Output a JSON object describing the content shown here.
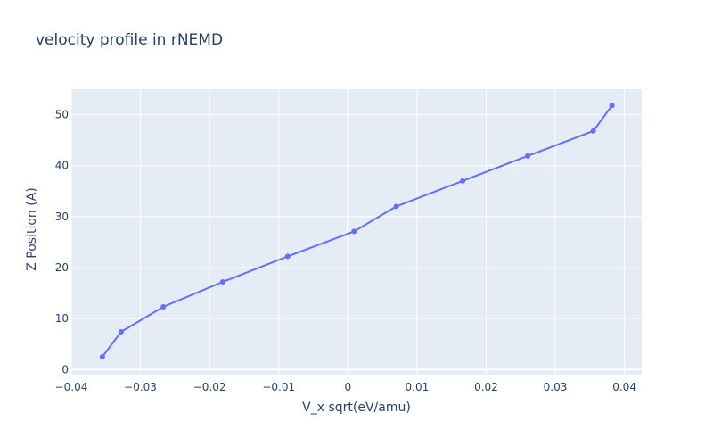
{
  "chart_data": {
    "type": "line",
    "title": "velocity profile in rNEMD",
    "xlabel": "V_x sqrt(eV/amu)",
    "ylabel": "Z Position (A)",
    "xlim": [
      -0.04,
      0.0425
    ],
    "ylim": [
      -1,
      55
    ],
    "x_ticks": [
      "−0.04",
      "−0.03",
      "−0.02",
      "−0.01",
      "0",
      "0.01",
      "0.02",
      "0.03",
      "0.04"
    ],
    "x_tick_values": [
      -0.04,
      -0.03,
      -0.02,
      -0.01,
      0,
      0.01,
      0.02,
      0.03,
      0.04
    ],
    "y_ticks": [
      "0",
      "10",
      "20",
      "30",
      "40",
      "50"
    ],
    "y_tick_values": [
      0,
      10,
      20,
      30,
      40,
      50
    ],
    "grid": true,
    "series": [
      {
        "x": [
          -0.0355,
          -0.0328,
          -0.0267,
          -0.0181,
          -0.0087,
          0.0009,
          0.007,
          0.0166,
          0.026,
          0.0355,
          0.0382
        ],
        "y": [
          2.5,
          7.4,
          12.3,
          17.2,
          22.2,
          27.1,
          32.0,
          37.0,
          41.9,
          46.8,
          51.8
        ],
        "color": "#636efa"
      }
    ],
    "colors": {
      "plot_bg": "#e5ecf6",
      "grid": "#ffffff",
      "text": "#2a3f5f",
      "line": "#636efa"
    }
  }
}
